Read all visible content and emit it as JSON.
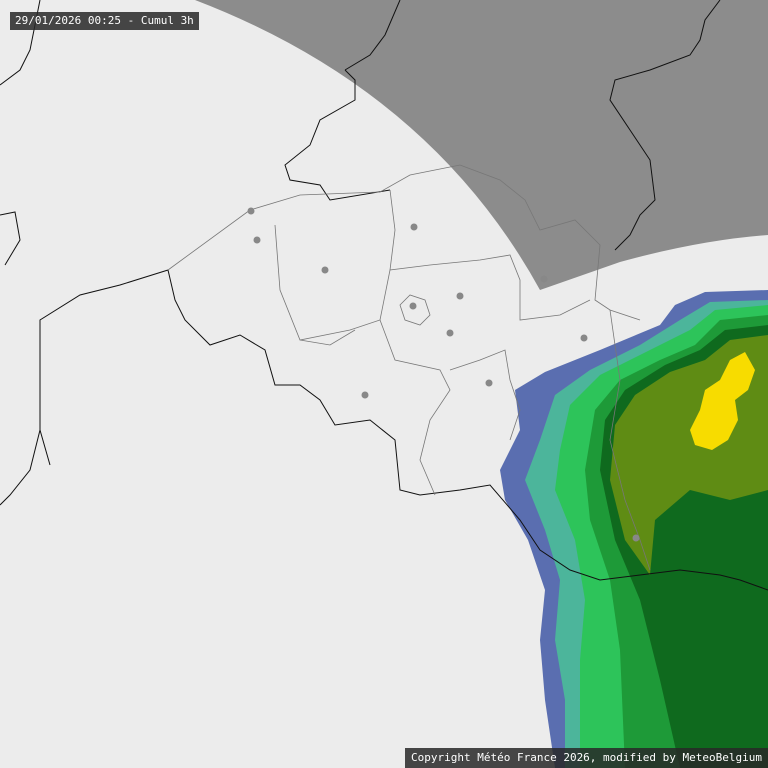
{
  "header": {
    "timestamp": "29/01/2026 00:25 - Cumul 3h"
  },
  "footer": {
    "copyright": "Copyright Météo France 2026, modified by MeteoBelgium"
  }
}
